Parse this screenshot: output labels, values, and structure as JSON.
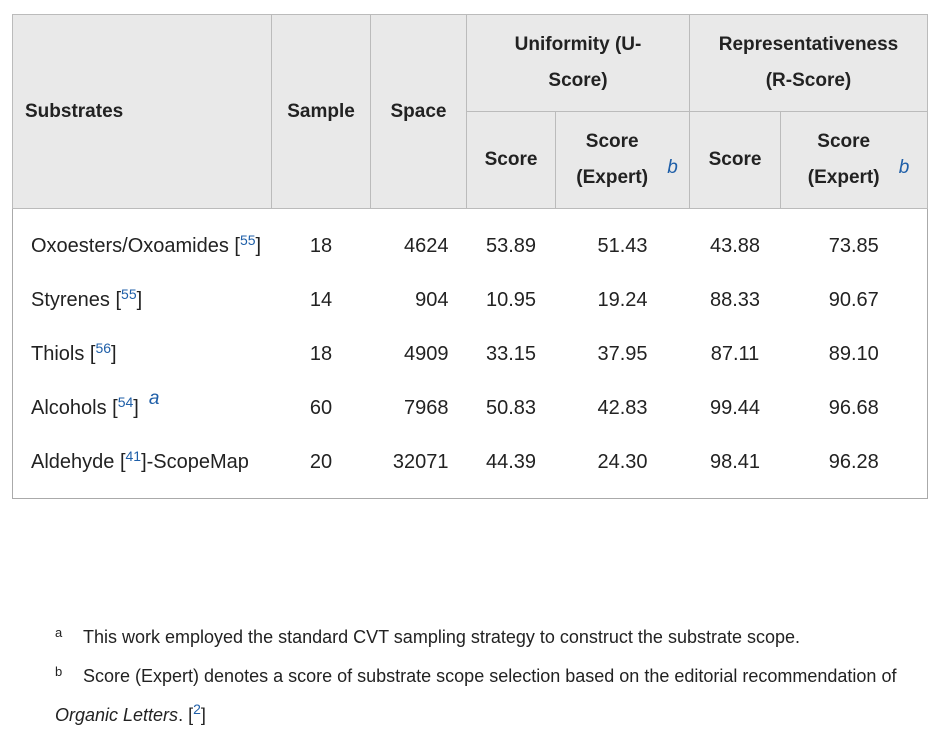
{
  "table": {
    "header": {
      "substrates": "Substrates",
      "sample": "Sample",
      "space": "Space",
      "uniformity": "Uniformity (U-Score)",
      "representativeness": "Representativeness (R-Score)",
      "u_score": "Score",
      "u_expert": "Score (Expert)",
      "u_expert_note": "b",
      "r_score": "Score",
      "r_expert": "Score (Expert)",
      "r_expert_note": "b"
    },
    "rows": [
      {
        "substrate": [
          {
            "text": "Oxoesters/Oxoamides ["
          },
          {
            "link": "55"
          },
          {
            "text": "]"
          }
        ],
        "sample": "18",
        "space": "4624",
        "u_score": "53.89",
        "u_expert": "51.43",
        "r_score": "43.88",
        "r_expert": "73.85"
      },
      {
        "substrate": [
          {
            "text": "Styrenes ["
          },
          {
            "link": "55"
          },
          {
            "text": "]"
          }
        ],
        "sample": "14",
        "space": "904",
        "u_score": "10.95",
        "u_expert": "19.24",
        "r_score": "88.33",
        "r_expert": "90.67"
      },
      {
        "substrate": [
          {
            "text": "Thiols ["
          },
          {
            "link": "56"
          },
          {
            "text": "]"
          }
        ],
        "sample": "18",
        "space": "4909",
        "u_score": "33.15",
        "u_expert": "37.95",
        "r_score": "87.11",
        "r_expert": "89.10"
      },
      {
        "substrate": [
          {
            "text": "Alcohols ["
          },
          {
            "link": "54"
          },
          {
            "text": "]"
          }
        ],
        "note": "a",
        "sample": "60",
        "space": "7968",
        "u_score": "50.83",
        "u_expert": "42.83",
        "r_score": "99.44",
        "r_expert": "96.68"
      },
      {
        "substrate": [
          {
            "text": "Aldehyde ["
          },
          {
            "link": "41"
          },
          {
            "text": "]-ScopeMap"
          }
        ],
        "sample": "20",
        "space": "32071",
        "u_score": "44.39",
        "u_expert": "24.30",
        "r_score": "98.41",
        "r_expert": "96.28"
      }
    ]
  },
  "footnotes": [
    {
      "mark": "a",
      "segments": [
        {
          "text": "This work employed the standard CVT sampling strategy to construct the substrate scope."
        }
      ]
    },
    {
      "mark": "b",
      "segments": [
        {
          "text": "Score (Expert) denotes a score of substrate scope selection based on the editorial recommendation of "
        },
        {
          "italic": "Organic Letters"
        },
        {
          "text": ". ["
        },
        {
          "link": "2"
        },
        {
          "text": "]"
        }
      ]
    }
  ]
}
